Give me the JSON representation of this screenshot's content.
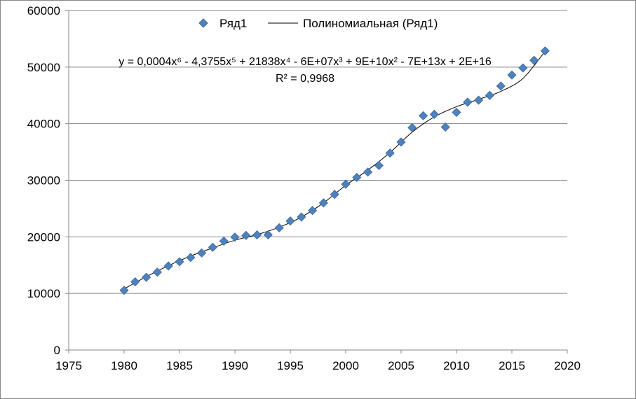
{
  "chart_data": {
    "type": "scatter",
    "title": "",
    "xlabel": "",
    "ylabel": "",
    "xlim": [
      1975,
      2020
    ],
    "ylim": [
      0,
      60000
    ],
    "x_ticks": [
      "1975",
      "1980",
      "1985",
      "1990",
      "1995",
      "2000",
      "2005",
      "2010",
      "2015",
      "2020"
    ],
    "y_ticks": [
      "0",
      "10000",
      "20000",
      "30000",
      "40000",
      "50000",
      "60000"
    ],
    "grid": "horizontal",
    "legend_position": "top",
    "series": [
      {
        "name": "Ряд1",
        "kind": "scatter",
        "marker": "diamond",
        "color": "#4F81BD",
        "x": [
          1980,
          1981,
          1982,
          1983,
          1984,
          1985,
          1986,
          1987,
          1988,
          1989,
          1990,
          1991,
          1992,
          1993,
          1994,
          1995,
          1996,
          1997,
          1998,
          1999,
          2000,
          2001,
          2002,
          2003,
          2004,
          2005,
          2006,
          2007,
          2008,
          2009,
          2010,
          2011,
          2012,
          2013,
          2014,
          2015,
          2016,
          2017,
          2018
        ],
        "y": [
          10550,
          12050,
          12850,
          13750,
          14850,
          15600,
          16350,
          17150,
          18150,
          19250,
          19950,
          20250,
          20350,
          20350,
          21600,
          22800,
          23500,
          24650,
          26000,
          27500,
          29300,
          30500,
          31450,
          32600,
          34800,
          36750,
          39300,
          41400,
          41650,
          39400,
          42000,
          43800,
          44150,
          45000,
          46650,
          48600,
          49850,
          51200,
          52850
        ]
      },
      {
        "name": "Полиномиальная (Ряд1)",
        "kind": "trendline",
        "color": "#000000",
        "x": [
          1980,
          1982,
          1984,
          1986,
          1988,
          1990,
          1992,
          1994,
          1996,
          1998,
          2000,
          2002,
          2004,
          2006,
          2008,
          2010,
          2012,
          2014,
          2016,
          2018
        ],
        "y": [
          10800,
          12950,
          14900,
          16600,
          18050,
          19400,
          20400,
          21700,
          23500,
          26000,
          29100,
          31800,
          34900,
          38500,
          41200,
          43000,
          44300,
          45700,
          48000,
          52800
        ]
      }
    ],
    "trendline_equation": "y = 0,0004x⁶ - 4,3755x⁵ + 21838x⁴ - 6E+07x³ + 9E+10x² - 7E+13x + 2E+16",
    "trendline_r2": "R² = 0,9968"
  }
}
